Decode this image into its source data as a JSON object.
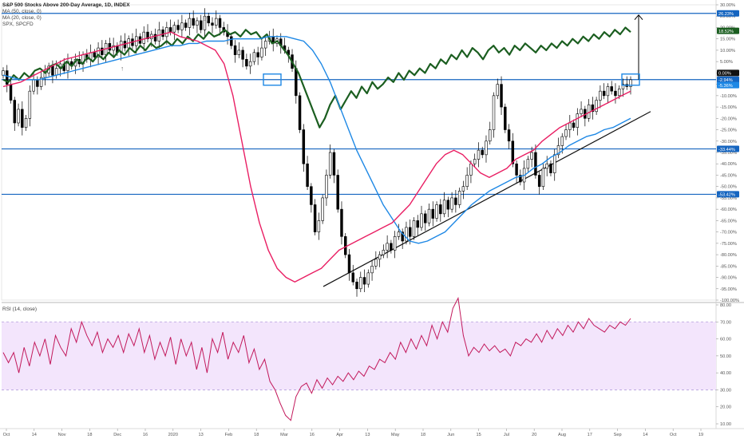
{
  "chart_data": [
    {
      "type": "candlestick",
      "title": "S&P 500 Stocks Above 200-Day Average, 1D, INDEX",
      "legend": [
        "MA (50, close, 0)",
        "MA (20, close, 0)",
        "SPX, SPCFD"
      ],
      "ylim": [
        -100,
        30
      ],
      "y_ticks": [
        "30.00%",
        "25.00%",
        "20.00%",
        "15.00%",
        "10.00%",
        "5.00%",
        "0.00%",
        "-5.00%",
        "-10.00%",
        "-15.00%",
        "-20.00%",
        "-25.00%",
        "-30.00%",
        "-35.00%",
        "-40.00%",
        "-45.00%",
        "-50.00%",
        "-55.00%",
        "-60.00%",
        "-65.00%",
        "-70.00%",
        "-75.00%",
        "-80.00%",
        "-85.00%",
        "-90.00%",
        "-95.00%",
        "-100.00%"
      ],
      "x_ticks": [
        "Oct",
        "14",
        "Nov",
        "18",
        "Dec",
        "16",
        "2020",
        "13",
        "Feb",
        "18",
        "Mar",
        "16",
        "Apr",
        "13",
        "May",
        "18",
        "Jun",
        "15",
        "Jul",
        "20",
        "Aug",
        "17",
        "Sep",
        "14",
        "Oct",
        "19"
      ],
      "horizontal_levels": [
        {
          "value": 26.23,
          "label": "26.23%"
        },
        {
          "value": -2.94,
          "label": "-2.94%"
        },
        {
          "value": -33.44,
          "label": "-33.44%"
        },
        {
          "value": -53.42,
          "label": "-53.42%"
        }
      ],
      "value_labels": [
        {
          "value": 18.52,
          "label": "18.52%",
          "color": "#1b5e20"
        },
        {
          "value": 0.0,
          "label": "0.00%",
          "color": "#111111"
        },
        {
          "value": -5.36,
          "label": "-5.36%",
          "color": "#1e88e5"
        }
      ],
      "candles_close": [
        1,
        -5,
        -12,
        -22,
        -16,
        -24,
        -20,
        -8,
        -3,
        -6,
        -2,
        0,
        3,
        -1,
        2,
        4,
        1,
        5,
        3,
        6,
        4,
        8,
        6,
        9,
        7,
        11,
        8,
        13,
        10,
        12,
        9,
        14,
        11,
        15,
        12,
        16,
        13,
        18,
        15,
        17,
        14,
        19,
        16,
        20,
        18,
        21,
        19,
        22,
        20,
        24,
        21,
        23,
        19,
        25,
        22,
        21,
        24,
        20,
        18,
        16,
        12,
        8,
        10,
        6,
        3,
        5,
        9,
        7,
        11,
        14,
        16,
        13,
        15,
        12,
        10,
        8,
        2,
        -10,
        -25,
        -40,
        -50,
        -58,
        -70,
        -65,
        -55,
        -45,
        -35,
        -45,
        -60,
        -72,
        -80,
        -88,
        -92,
        -95,
        -90,
        -93,
        -88,
        -85,
        -82,
        -80,
        -78,
        -75,
        -78,
        -72,
        -70,
        -74,
        -68,
        -72,
        -65,
        -68,
        -62,
        -66,
        -60,
        -64,
        -58,
        -62,
        -56,
        -60,
        -55,
        -58,
        -52,
        -50,
        -45,
        -40,
        -38,
        -34,
        -36,
        -30,
        -25,
        -10,
        -5,
        -15,
        -25,
        -30,
        -40,
        -45,
        -48,
        -42,
        -38,
        -35,
        -45,
        -50,
        -42,
        -40,
        -44,
        -36,
        -32,
        -28,
        -25,
        -22,
        -24,
        -18,
        -16,
        -20,
        -14,
        -17,
        -12,
        -8,
        -10,
        -6,
        -8,
        -10,
        -7,
        -5,
        -6,
        -3
      ],
      "series": [
        {
          "name": "SPX, SPCFD",
          "values": [
            -3,
            -4,
            -1,
            -3,
            0,
            -2,
            1,
            2,
            0,
            3,
            4,
            2,
            5,
            3,
            6,
            4,
            7,
            5,
            8,
            6,
            9,
            7,
            10,
            8,
            11,
            9,
            12,
            10,
            13,
            11,
            12,
            14,
            12,
            15,
            13,
            16,
            14,
            17,
            15,
            18,
            16,
            17,
            19,
            17,
            18,
            16,
            19,
            17,
            18,
            15,
            17,
            13,
            14,
            11,
            8,
            4,
            0,
            -6,
            -12,
            -18,
            -24,
            -20,
            -14,
            -10,
            -16,
            -12,
            -8,
            -11,
            -6,
            -9,
            -4,
            -7,
            -5,
            -2,
            -4,
            0,
            -3,
            1,
            -1,
            2,
            0,
            4,
            2,
            6,
            4,
            8,
            6,
            10,
            7,
            11,
            9,
            6,
            10,
            12,
            9,
            11,
            8,
            12,
            10,
            13,
            11,
            9,
            12,
            10,
            13,
            11,
            14,
            12,
            15,
            13,
            16,
            14,
            17,
            15,
            18,
            16,
            19,
            17,
            20,
            18
          ],
          "color": "#1b5e20"
        },
        {
          "name": "MA (50, close, 0)",
          "values": [
            -1,
            -2,
            -3,
            -3,
            -3,
            -2,
            -1,
            0,
            1,
            2,
            3,
            4,
            5,
            6,
            7,
            8,
            9,
            10,
            11,
            12,
            12,
            13,
            13,
            14,
            14,
            14,
            15,
            15,
            15,
            15,
            16,
            16,
            16,
            15,
            14,
            10,
            4,
            -4,
            -14,
            -24,
            -34,
            -42,
            -50,
            -58,
            -64,
            -70,
            -74,
            -75,
            -74,
            -72,
            -70,
            -66,
            -62,
            -58,
            -55,
            -52,
            -50,
            -48,
            -46,
            -45,
            -42,
            -40,
            -37,
            -35,
            -32,
            -30,
            -28,
            -27,
            -25,
            -24,
            -22,
            -20
          ],
          "color": "#1e88e5"
        },
        {
          "name": "MA (20, close, 0)",
          "values": [
            -6,
            -5,
            -4,
            -2,
            0,
            2,
            4,
            6,
            7,
            8,
            9,
            10,
            11,
            12,
            13,
            14,
            15,
            16,
            17,
            18,
            16,
            15,
            14,
            12,
            10,
            4,
            -10,
            -30,
            -50,
            -66,
            -78,
            -86,
            -90,
            -92,
            -90,
            -88,
            -86,
            -82,
            -78,
            -76,
            -74,
            -72,
            -70,
            -68,
            -66,
            -62,
            -58,
            -52,
            -46,
            -40,
            -36,
            -34,
            -36,
            -40,
            -44,
            -46,
            -44,
            -42,
            -38,
            -36,
            -34,
            -30,
            -27,
            -24,
            -22,
            -20,
            -18,
            -16,
            -14,
            -12,
            -10,
            -8
          ],
          "color": "#e91e63"
        }
      ],
      "trendlines": [
        {
          "from": [
            "Mar 23",
            -94
          ],
          "to": [
            "Sep 14",
            -17
          ],
          "color": "#111111"
        }
      ],
      "annotations": [
        {
          "type": "arrow-up",
          "at": [
            "Sep 08",
            -3
          ],
          "to": 26.23
        },
        {
          "type": "box",
          "at": [
            "Feb 19",
            -2.94
          ]
        },
        {
          "type": "box",
          "at": [
            "Sep 02",
            -2.94
          ]
        }
      ]
    },
    {
      "type": "line",
      "title": "RSI (14, close)",
      "ylim": [
        10,
        80
      ],
      "y_ticks": [
        "80.00",
        "70.00",
        "60.00",
        "50.00",
        "40.00",
        "30.00",
        "20.00",
        "10.00"
      ],
      "bands": [
        30,
        70
      ],
      "series": [
        {
          "name": "RSI (14, close)",
          "values": [
            52,
            46,
            52,
            40,
            55,
            44,
            58,
            50,
            60,
            45,
            62,
            55,
            50,
            66,
            58,
            70,
            62,
            56,
            64,
            52,
            60,
            55,
            62,
            52,
            63,
            56,
            66,
            52,
            62,
            48,
            58,
            50,
            61,
            45,
            60,
            50,
            58,
            42,
            55,
            40,
            60,
            52,
            64,
            48,
            58,
            52,
            62,
            46,
            54,
            42,
            48,
            35,
            30,
            22,
            15,
            12,
            26,
            32,
            34,
            28,
            36,
            31,
            37,
            33,
            38,
            35,
            40,
            36,
            41,
            38,
            44,
            42,
            48,
            46,
            52,
            48,
            58,
            52,
            60,
            54,
            62,
            56,
            68,
            60,
            70,
            64,
            78,
            84,
            62,
            50,
            55,
            52,
            57,
            53,
            56,
            52,
            54,
            50,
            58,
            56,
            60,
            58,
            63,
            58,
            65,
            60,
            66,
            62,
            68,
            64,
            70,
            66,
            72,
            68,
            66,
            64,
            68,
            66,
            70,
            68,
            72
          ]
        }
      ]
    }
  ]
}
